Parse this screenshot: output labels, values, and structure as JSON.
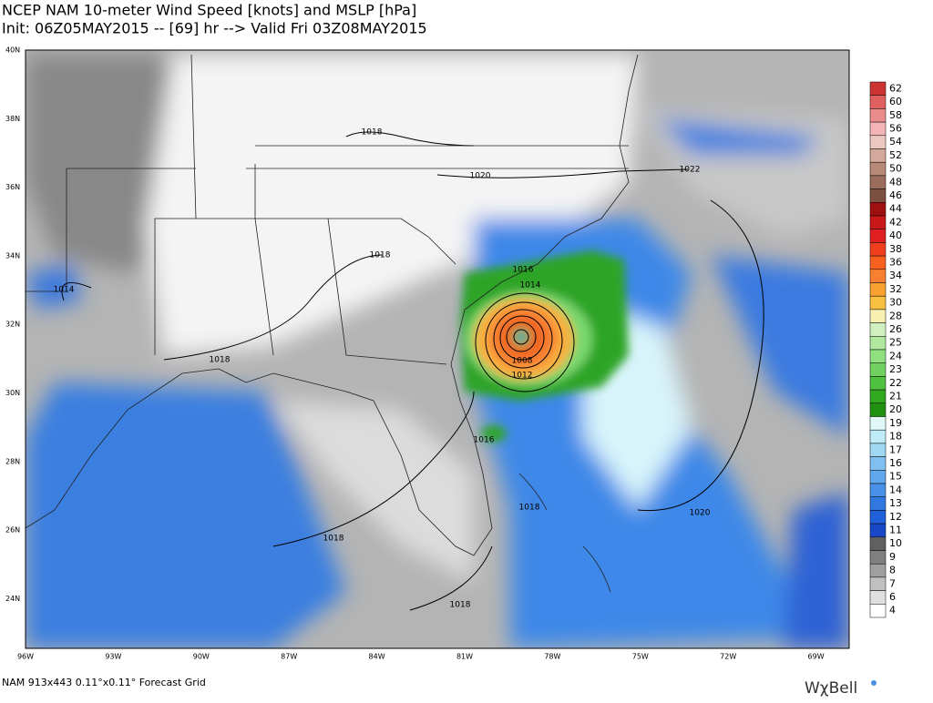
{
  "header": {
    "title": "NCEP NAM 10-meter Wind Speed [knots] and MSLP [hPa]",
    "subtitle": "Init: 06Z05MAY2015 -- [69] hr --> Valid Fri 03Z08MAY2015"
  },
  "map": {
    "lat_labels": [
      "40N",
      "38N",
      "36N",
      "34N",
      "32N",
      "30N",
      "28N",
      "26N",
      "24N"
    ],
    "lon_labels": [
      "96W",
      "93W",
      "90W",
      "87W",
      "84W",
      "81W",
      "78W",
      "75W",
      "72W",
      "69W"
    ],
    "isobar_labels": [
      "1018",
      "1020",
      "1022",
      "1018",
      "1016",
      "1014",
      "1014",
      "1018",
      "1008",
      "1012",
      "1016",
      "1018",
      "1020",
      "1018",
      "1018"
    ]
  },
  "colorbar": {
    "labels": [
      "62",
      "60",
      "58",
      "56",
      "54",
      "52",
      "50",
      "48",
      "46",
      "44",
      "42",
      "40",
      "38",
      "36",
      "34",
      "32",
      "30",
      "28",
      "26",
      "25",
      "24",
      "23",
      "22",
      "21",
      "20",
      "19",
      "18",
      "17",
      "16",
      "15",
      "14",
      "13",
      "12",
      "11",
      "10",
      "9",
      "8",
      "7",
      "6",
      "4"
    ],
    "colors": [
      "#cc3333",
      "#e06060",
      "#eb8c8c",
      "#f2b4b4",
      "#ecc8c0",
      "#d4a89a",
      "#b88878",
      "#9c6c5c",
      "#7c5040",
      "#a01010",
      "#c81818",
      "#e02020",
      "#f04020",
      "#f86020",
      "#f88030",
      "#f8a030",
      "#f8c040",
      "#f8f0b0",
      "#d0f0c0",
      "#b0e8a0",
      "#90e080",
      "#70d060",
      "#50c040",
      "#30a820",
      "#209010",
      "#e0f8f8",
      "#c0ecf8",
      "#a0d8f4",
      "#80c0f0",
      "#60a8ec",
      "#4890e8",
      "#3078e0",
      "#2060d8",
      "#1848c8",
      "#606060",
      "#808080",
      "#a0a0a0",
      "#c0c0c0",
      "#e0e0e0",
      "#ffffff"
    ]
  },
  "footer": {
    "grid_info": "NAM 913x443 0.11°x0.11° Forecast Grid",
    "logo": "WχBell"
  }
}
